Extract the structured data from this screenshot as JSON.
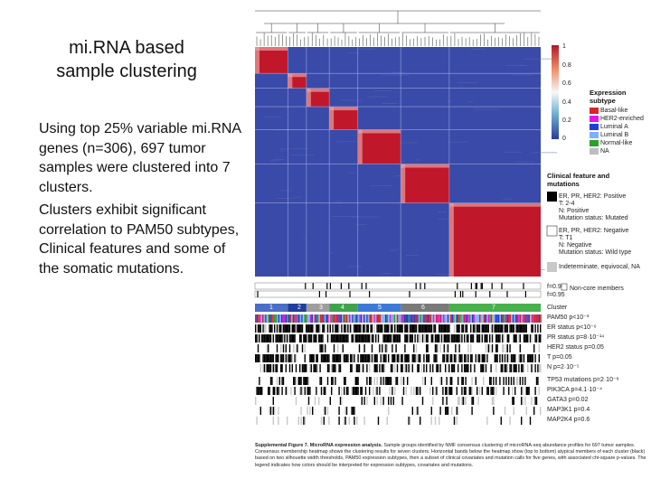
{
  "slide": {
    "title_line1": "mi.RNA based",
    "title_line2": "sample clustering",
    "paragraph1": "Using top 25% variable mi.RNA genes (n=306), 697 tumor samples were clustered into 7 clusters.",
    "paragraph2": "Clusters exhibit significant correlation to PAM50 subtypes, Clinical features and some of the somatic mutations."
  },
  "figure": {
    "colorbar_ticks": [
      "1",
      "0.8",
      "0.6",
      "0.4",
      "0.2",
      "0"
    ],
    "expression_legend": {
      "title_line1": "Expression",
      "title_line2": "subtype",
      "items": [
        {
          "label": "Basal-like",
          "color": "#d62728"
        },
        {
          "label": "HER2-enriched",
          "color": "#e614e6"
        },
        {
          "label": "Luminal A",
          "color": "#1f3fd6"
        },
        {
          "label": "Luminal B",
          "color": "#7fb0ff"
        },
        {
          "label": "Normal-like",
          "color": "#2ca02c"
        },
        {
          "label": "NA",
          "color": "#bdbdbd"
        }
      ]
    },
    "clinical_legend": {
      "title_line1": "Clinical feature and",
      "title_line2": "mutations",
      "positive": [
        "ER, PR, HER2: Positive",
        "T: 2-4",
        "N: Positive",
        "Mutation status: Mutated"
      ],
      "negative": [
        "ER, PR, HER2: Negative",
        "T: T1",
        "N: Negative",
        "Mutation status: Wild type"
      ],
      "indeterminate": "Indeterminate, equivocal, NA"
    },
    "silhouette_labels": [
      "f=0.9",
      "f=0.95"
    ],
    "noncore_label": "Non-core members",
    "cluster_label": "Cluster",
    "clusters": [
      {
        "id": "1",
        "color": "#4a6fc7"
      },
      {
        "id": "2",
        "color": "#1f3f99"
      },
      {
        "id": "3",
        "color": "#9e9e9e"
      },
      {
        "id": "4",
        "color": "#3fa34d"
      },
      {
        "id": "5",
        "color": "#3d7ad6"
      },
      {
        "id": "6",
        "color": "#7a7a7a"
      },
      {
        "id": "7",
        "color": "#48b04c"
      }
    ],
    "track_labels": [
      "PAM50  p<10⁻³",
      "ER status  p<10⁻⁶",
      "PR status  p=8·10⁻¹⁴",
      "HER2 status  p=0.05",
      "T  p=0.05",
      "N  p=2·10⁻⁵",
      "TP53 mutations  p=2·10⁻⁸",
      "PIK3CA  p=4.1·10⁻⁴",
      "GATA3  p=0.02",
      "MAP3K1  p=0.4",
      "MAP2K4  p=0.6"
    ],
    "caption_bold": "Supplemental Figure 7. MicroRNA expression analysis.",
    "caption_text": " Sample groups identified by NMF consensus clustering of microRNA-seq abundance profiles for 697 tumor samples. Consensus membership heatmap shows the clustering results for seven clusters. Horizontal bands below the heatmap show (top to bottom) atypical members of each cluster (black) based on two silhouette width thresholds, PAM50 expression subtypes, then a subset of clinical covariates and mutation calls for five genes, with associated chi-square p-values. The legend indicates how colors should be interpreted for expression subtypes, covariates and mutations."
  }
}
